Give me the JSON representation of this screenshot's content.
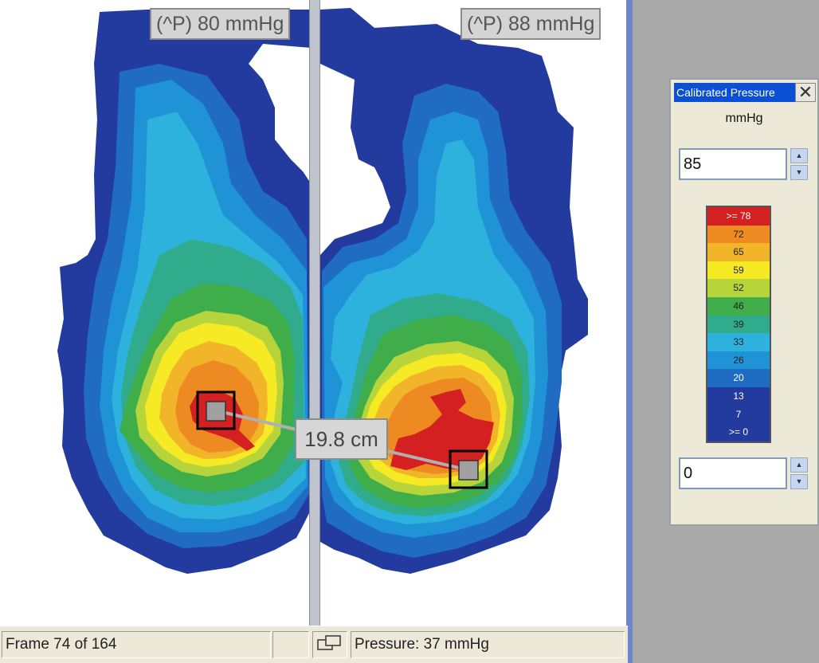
{
  "peaks": {
    "left_label": "(^P) 80 mmHg",
    "right_label": "(^P) 88 mmHg"
  },
  "distance_label": "19.8 cm",
  "status_bar": {
    "frame": "Frame 74 of 164",
    "pressure": "Pressure: 37 mmHg"
  },
  "calibration_panel": {
    "title": "Calibrated Pressure",
    "units": "mmHg",
    "max_value": "85",
    "min_value": "0",
    "legend": [
      {
        "label": ">= 78",
        "color": "#d42020"
      },
      {
        "label": "72",
        "color": "#ee8a22"
      },
      {
        "label": "65",
        "color": "#f2b52a"
      },
      {
        "label": "59",
        "color": "#f6ea24"
      },
      {
        "label": "52",
        "color": "#b7d43a"
      },
      {
        "label": "46",
        "color": "#3fae4a"
      },
      {
        "label": "39",
        "color": "#30ac8c"
      },
      {
        "label": "33",
        "color": "#2cb2dc"
      },
      {
        "label": "26",
        "color": "#2092d6"
      },
      {
        "label": "20",
        "color": "#1f6cc2"
      },
      {
        "label": "13",
        "color": "#233a9e"
      },
      {
        "label": "7",
        "color": "#233a9e"
      },
      {
        "label": ">= 0",
        "color": "#233a9e"
      }
    ]
  },
  "colors": {
    "window_bg": "#a9a9a9",
    "title_bar": "#0a4fd4",
    "deep_blue": "#233a9e",
    "peak_marker": "#a0a0a0"
  }
}
